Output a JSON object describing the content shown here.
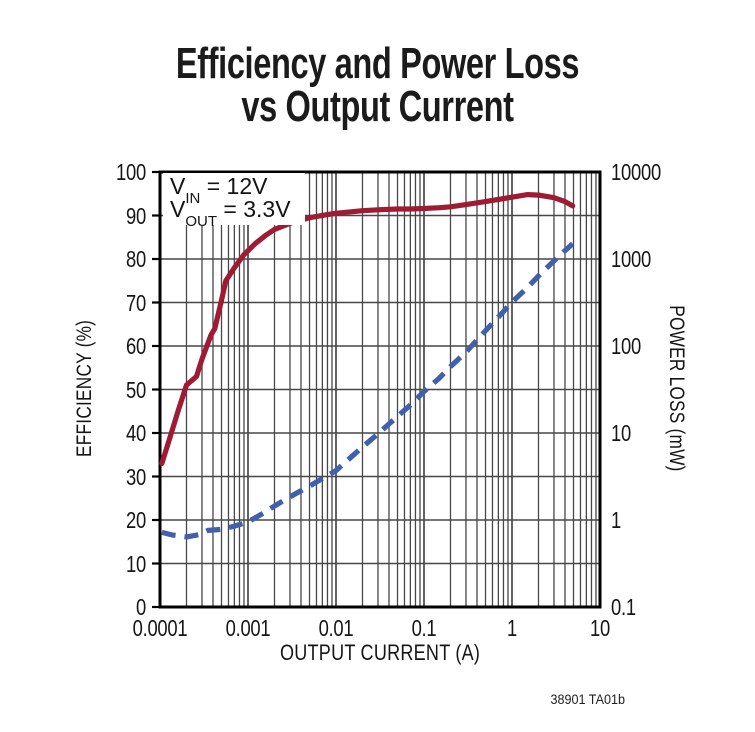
{
  "title": {
    "line1": "Efficiency and Power Loss",
    "line2": "vs Output Current"
  },
  "annotation": {
    "line1": {
      "base": "V",
      "sub": "IN",
      "rest": " = 12V"
    },
    "line2": {
      "base": "V",
      "sub": "OUT",
      "rest": " = 3.3V"
    }
  },
  "footnote": "38901 TA01b",
  "colors": {
    "efficiency_curve": "#9E1B33",
    "power_loss_curve": "#4060AC",
    "grid": "#474747",
    "frame": "#000000",
    "text": "#151515"
  },
  "chart_data": {
    "type": "line",
    "title": "Efficiency and Power Loss vs Output Current",
    "xlabel": "OUTPUT CURRENT (A)",
    "ylabel_left": "EFFICIENCY (%)",
    "ylabel_right": "POWER LOSS (mW)",
    "x_scale": "log",
    "x_range": [
      0.0001,
      10
    ],
    "x_ticks": [
      "0.0001",
      "0.001",
      "0.01",
      "0.1",
      "1",
      "10"
    ],
    "y_left_scale": "linear",
    "y_left_range": [
      0,
      100
    ],
    "y_left_ticks": [
      "100",
      "90",
      "80",
      "70",
      "60",
      "50",
      "40",
      "30",
      "20",
      "10",
      "0"
    ],
    "y_right_scale": "log",
    "y_right_range": [
      0.1,
      10000
    ],
    "y_right_ticks": [
      "10000",
      "1000",
      "100",
      "10",
      "1",
      "0.1"
    ],
    "grid": "log-x full, 10%-step horizontal",
    "legend": "none",
    "conditions": [
      "VIN = 12V",
      "VOUT = 3.3V"
    ],
    "series": [
      {
        "id": "efficiency-curve",
        "name": "Efficiency (%)",
        "axis": "left",
        "style": "solid",
        "color": "#9E1B33",
        "points": [
          [
            0.000105,
            33
          ],
          [
            0.00013,
            39
          ],
          [
            0.00016,
            45
          ],
          [
            0.0002,
            51
          ],
          [
            0.00026,
            53
          ],
          [
            0.0003,
            57
          ],
          [
            0.00038,
            62.5
          ],
          [
            0.00042,
            64
          ],
          [
            0.0005,
            70.5
          ],
          [
            0.00056,
            75
          ],
          [
            0.0007,
            78
          ],
          [
            0.0009,
            81
          ],
          [
            0.0012,
            83.5
          ],
          [
            0.0016,
            85.5
          ],
          [
            0.002,
            86.8
          ],
          [
            0.003,
            88.2
          ],
          [
            0.005,
            89.5
          ],
          [
            0.008,
            90.2
          ],
          [
            0.01,
            90.5
          ],
          [
            0.02,
            91.1
          ],
          [
            0.03,
            91.3
          ],
          [
            0.05,
            91.5
          ],
          [
            0.07,
            91.5
          ],
          [
            0.1,
            91.6
          ],
          [
            0.15,
            91.8
          ],
          [
            0.2,
            92
          ],
          [
            0.3,
            92.5
          ],
          [
            0.5,
            93.2
          ],
          [
            0.7,
            93.7
          ],
          [
            1,
            94.2
          ],
          [
            1.5,
            94.8
          ],
          [
            2,
            94.7
          ],
          [
            3,
            94.1
          ],
          [
            4,
            93.2
          ],
          [
            4.9,
            92.2
          ]
        ]
      },
      {
        "id": "power-loss-curve",
        "name": "Power Loss (mW)",
        "axis": "right",
        "style": "dashed",
        "color": "#4060AC",
        "points": [
          [
            0.000105,
            0.72
          ],
          [
            0.00014,
            0.67
          ],
          [
            0.0002,
            0.64
          ],
          [
            0.00028,
            0.68
          ],
          [
            0.00035,
            0.76
          ],
          [
            0.0005,
            0.78
          ],
          [
            0.0007,
            0.85
          ],
          [
            0.001,
            0.95
          ],
          [
            0.0015,
            1.2
          ],
          [
            0.002,
            1.45
          ],
          [
            0.003,
            1.85
          ],
          [
            0.005,
            2.45
          ],
          [
            0.007,
            3.0
          ],
          [
            0.01,
            3.7
          ],
          [
            0.02,
            6.9
          ],
          [
            0.03,
            9.8
          ],
          [
            0.05,
            15.5
          ],
          [
            0.07,
            21
          ],
          [
            0.1,
            30
          ],
          [
            0.15,
            43
          ],
          [
            0.2,
            58
          ],
          [
            0.3,
            85
          ],
          [
            0.5,
            150
          ],
          [
            0.7,
            215
          ],
          [
            1,
            320
          ],
          [
            1.5,
            470
          ],
          [
            2,
            640
          ],
          [
            3,
            950
          ],
          [
            4,
            1250
          ],
          [
            4.9,
            1500
          ]
        ]
      }
    ]
  }
}
